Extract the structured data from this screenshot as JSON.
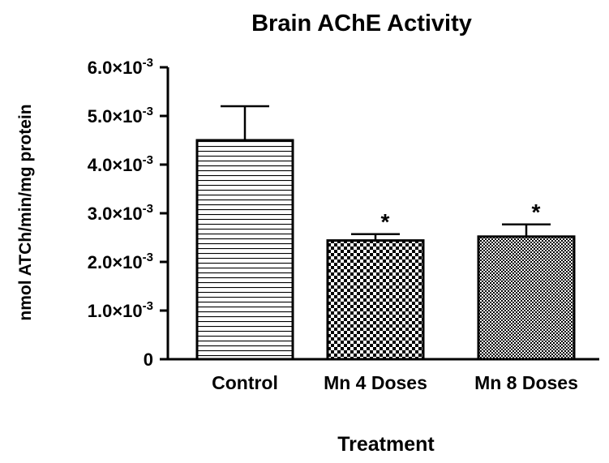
{
  "chart_data": {
    "type": "bar",
    "title": "Brain AChE Activity",
    "xlabel": "Treatment",
    "ylabel": "nmol ATCh/min/mg protein",
    "categories": [
      "Control",
      "Mn 4 Doses",
      "Mn 8 Doses"
    ],
    "values": [
      0.0045,
      0.00244,
      0.00252
    ],
    "errors": [
      0.0007,
      0.00013,
      0.00025
    ],
    "significance": [
      "",
      "*",
      "*"
    ],
    "bar_patterns": [
      "horizontal-lines",
      "coarse-checker",
      "fine-checker"
    ],
    "ylim": [
      0,
      0.006
    ],
    "yticks": [
      0,
      0.001,
      0.002,
      0.003,
      0.004,
      0.005,
      0.006
    ],
    "ytick_labels": [
      {
        "mantissa": "0",
        "exponent": ""
      },
      {
        "mantissa": "1.0×10",
        "exponent": "-3"
      },
      {
        "mantissa": "2.0×10",
        "exponent": "-3"
      },
      {
        "mantissa": "3.0×10",
        "exponent": "-3"
      },
      {
        "mantissa": "4.0×10",
        "exponent": "-3"
      },
      {
        "mantissa": "5.0×10",
        "exponent": "-3"
      },
      {
        "mantissa": "6.0×10",
        "exponent": "-3"
      }
    ],
    "grid": false,
    "legend": "none",
    "colors": {
      "bar_stroke": "#000000",
      "bar_fill": "#ffffff"
    }
  }
}
